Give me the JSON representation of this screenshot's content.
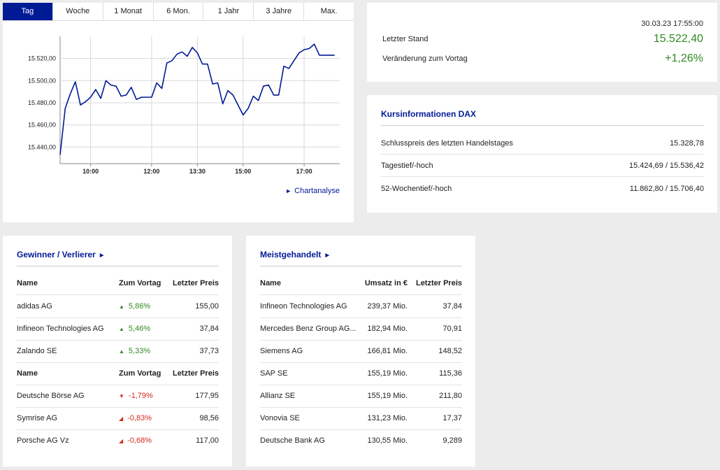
{
  "tabs": [
    "Tag",
    "Woche",
    "1 Monat",
    "6 Mon.",
    "1 Jahr",
    "3 Jahre",
    "Max."
  ],
  "active_tab": "Tag",
  "chart_link": "Chartanalyse",
  "chart_data": {
    "type": "line",
    "title": "",
    "xlabel": "",
    "ylabel": "",
    "x_ticks": [
      "10:00",
      "12:00",
      "13:30",
      "15:00",
      "17:00"
    ],
    "y_ticks": [
      "15.440,00",
      "15.460,00",
      "15.480,00",
      "15.500,00",
      "15.520,00"
    ],
    "ylim": [
      15425,
      15540
    ],
    "xlim": [
      "09:00",
      "18:10"
    ],
    "x": [
      "09:00",
      "09:10",
      "09:20",
      "09:30",
      "09:40",
      "09:50",
      "10:00",
      "10:10",
      "10:20",
      "10:30",
      "10:40",
      "10:50",
      "11:00",
      "11:10",
      "11:20",
      "11:30",
      "11:40",
      "11:50",
      "12:00",
      "12:10",
      "12:20",
      "12:30",
      "12:40",
      "12:50",
      "13:00",
      "13:10",
      "13:20",
      "13:30",
      "13:40",
      "13:50",
      "14:00",
      "14:10",
      "14:20",
      "14:30",
      "14:40",
      "14:50",
      "15:00",
      "15:10",
      "15:20",
      "15:30",
      "15:40",
      "15:50",
      "16:00",
      "16:10",
      "16:20",
      "16:30",
      "16:40",
      "16:50",
      "17:00",
      "17:10",
      "17:20",
      "17:30",
      "17:40",
      "17:50",
      "18:00"
    ],
    "values": [
      15433,
      15475,
      15488,
      15499,
      15478,
      15481,
      15485,
      15492,
      15484,
      15500,
      15496,
      15495,
      15486,
      15487,
      15494,
      15483,
      15485,
      15485,
      15485,
      15498,
      15493,
      15516,
      15518,
      15524,
      15526,
      15522,
      15530,
      15525,
      15515,
      15515,
      15497,
      15498,
      15479,
      15491,
      15487,
      15478,
      15469,
      15475,
      15486,
      15482,
      15495,
      15496,
      15487,
      15487,
      15513,
      15511,
      15518,
      15525,
      15528,
      15529,
      15533,
      15523,
      15523,
      15523,
      15523
    ],
    "grid": true,
    "color": "#001a96"
  },
  "quote": {
    "timestamp": "30.03.23 17:55:00",
    "last_label": "Letzter Stand",
    "last_value": "15.522,40",
    "change_label": "Veränderung zum Vortag",
    "change_value": "+1,26%",
    "positive_color": "#2e8b1f"
  },
  "kursinfo": {
    "title": "Kursinformationen DAX",
    "rows": [
      {
        "label": "Schlusspreis des letzten Handelstages",
        "value": "15.328,78"
      },
      {
        "label": "Tagestief/-hoch",
        "value": "15.424,69 / 15.536,42"
      },
      {
        "label": "52-Wochentief/-hoch",
        "value": "11.862,80 / 15.706,40"
      }
    ]
  },
  "gewinner": {
    "title": "Gewinner / Verlierer",
    "header": {
      "name": "Name",
      "change": "Zum Vortag",
      "price": "Letzter Preis"
    },
    "winners": [
      {
        "name": "adidas AG",
        "change": "5,86%",
        "price": "155,00"
      },
      {
        "name": "Infineon Technologies AG",
        "change": "5,46%",
        "price": "37,84"
      },
      {
        "name": "Zalando SE",
        "change": "5,33%",
        "price": "37,73"
      }
    ],
    "losers": [
      {
        "name": "Deutsche Börse AG",
        "change": "-1,79%",
        "price": "177,95"
      },
      {
        "name": "Symrise AG",
        "change": "-0,83%",
        "price": "98,56"
      },
      {
        "name": "Porsche AG Vz",
        "change": "-0,68%",
        "price": "117,00"
      }
    ]
  },
  "meistgehandelt": {
    "title": "Meistgehandelt",
    "header": {
      "name": "Name",
      "volume": "Umsatz in €",
      "price": "Letzter Preis"
    },
    "rows": [
      {
        "name": "Infineon Technologies AG",
        "volume": "239,37 Mio.",
        "price": "37,84"
      },
      {
        "name": "Mercedes Benz Group AG...",
        "volume": "182,94 Mio.",
        "price": "70,91"
      },
      {
        "name": "Siemens AG",
        "volume": "166,81 Mio.",
        "price": "148,52"
      },
      {
        "name": "SAP SE",
        "volume": "155,19 Mio.",
        "price": "115,36"
      },
      {
        "name": "Allianz SE",
        "volume": "155,19 Mio.",
        "price": "211,80"
      },
      {
        "name": "Vonovia SE",
        "volume": "131,23 Mio.",
        "price": "17,37"
      },
      {
        "name": "Deutsche Bank AG",
        "volume": "130,55 Mio.",
        "price": "9,289"
      }
    ]
  }
}
